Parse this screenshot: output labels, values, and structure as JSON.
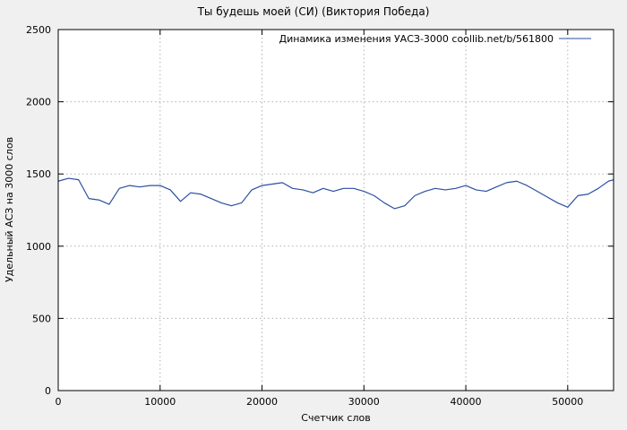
{
  "page": {
    "background": "#f0f0f0",
    "plot_background": "#ffffff"
  },
  "chart_data": {
    "type": "line",
    "title": "Ты будешь моей (СИ) (Виктория Победа)",
    "xlabel": "Счетчик слов",
    "ylabel": "Удельный АСЗ на 3000 слов",
    "legend": "Динамика изменения УАСЗ-3000 coollib.net/b/561800",
    "legend_position": "top-center-inside",
    "grid": true,
    "line_color": "#2b4fa0",
    "axis_color": "#000000",
    "grid_color": "#b0b0b0",
    "xlim": [
      0,
      54500
    ],
    "ylim": [
      0,
      2500
    ],
    "xticks": [
      0,
      10000,
      20000,
      30000,
      40000,
      50000
    ],
    "yticks": [
      0,
      500,
      1000,
      1500,
      2000,
      2500
    ],
    "x": [
      0,
      1000,
      2000,
      3000,
      4000,
      5000,
      6000,
      7000,
      8000,
      9000,
      10000,
      11000,
      12000,
      13000,
      14000,
      15000,
      16000,
      17000,
      18000,
      19000,
      20000,
      21000,
      22000,
      23000,
      24000,
      25000,
      26000,
      27000,
      28000,
      29000,
      30000,
      31000,
      32000,
      33000,
      34000,
      35000,
      36000,
      37000,
      38000,
      39000,
      40000,
      41000,
      42000,
      43000,
      44000,
      45000,
      46000,
      47000,
      48000,
      49000,
      50000,
      51000,
      52000,
      53000,
      54000,
      54500
    ],
    "y": [
      1450,
      1470,
      1460,
      1330,
      1320,
      1290,
      1400,
      1420,
      1410,
      1420,
      1420,
      1390,
      1310,
      1370,
      1360,
      1330,
      1300,
      1280,
      1300,
      1390,
      1420,
      1430,
      1440,
      1400,
      1390,
      1370,
      1400,
      1380,
      1400,
      1400,
      1380,
      1350,
      1300,
      1260,
      1280,
      1350,
      1380,
      1400,
      1390,
      1400,
      1420,
      1390,
      1380,
      1410,
      1440,
      1450,
      1420,
      1380,
      1340,
      1300,
      1270,
      1350,
      1360,
      1400,
      1450,
      1460
    ]
  }
}
